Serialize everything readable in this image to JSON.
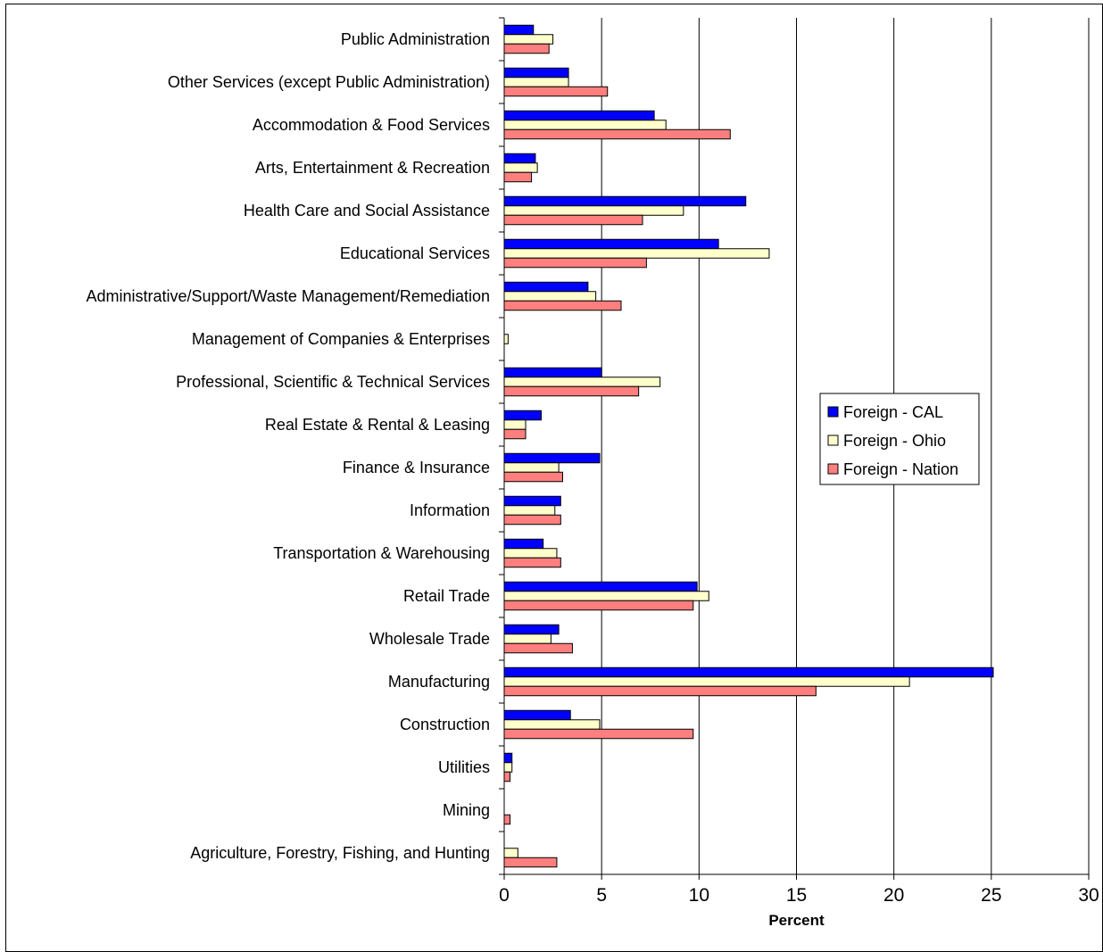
{
  "chart_data": {
    "type": "bar",
    "orientation": "horizontal",
    "title": "",
    "xlabel": "Percent",
    "ylabel": "",
    "xlim": [
      0,
      30
    ],
    "xticks": [
      "0",
      "5",
      "10",
      "15",
      "20",
      "25",
      "30"
    ],
    "grid": "vertical major gridlines",
    "legend_position": "right",
    "categories": [
      "Public Administration",
      "Other Services (except Public Administration)",
      "Accommodation & Food Services",
      "Arts, Entertainment & Recreation",
      "Health Care and Social Assistance",
      "Educational Services",
      "Administrative/Support/Waste Management/Remediation",
      "Management of Companies & Enterprises",
      "Professional, Scientific & Technical Services",
      "Real Estate & Rental & Leasing",
      "Finance & Insurance",
      "Information",
      "Transportation & Warehousing",
      "Retail Trade",
      "Wholesale Trade",
      "Manufacturing",
      "Construction",
      "Utilities",
      "Mining",
      "Agriculture, Forestry, Fishing, and Hunting"
    ],
    "series": [
      {
        "name": "Foreign - CAL",
        "color": "#0000ff",
        "values": [
          1.5,
          3.3,
          7.7,
          1.6,
          12.4,
          11.0,
          4.3,
          0.0,
          5.0,
          1.9,
          4.9,
          2.9,
          2.0,
          9.9,
          2.8,
          25.1,
          3.4,
          0.4,
          0.0,
          0.0
        ]
      },
      {
        "name": "Foreign - Ohio",
        "color": "#ffffcc",
        "values": [
          2.5,
          3.3,
          8.3,
          1.7,
          9.2,
          13.6,
          4.7,
          0.2,
          8.0,
          1.1,
          2.8,
          2.6,
          2.7,
          10.5,
          2.4,
          20.8,
          4.9,
          0.4,
          0.0,
          0.7
        ]
      },
      {
        "name": "Foreign - Nation",
        "color": "#ff7f7f",
        "values": [
          2.3,
          5.3,
          11.6,
          1.4,
          7.1,
          7.3,
          6.0,
          0.0,
          6.9,
          1.1,
          3.0,
          2.9,
          2.9,
          9.7,
          3.5,
          16.0,
          9.7,
          0.3,
          0.3,
          2.7
        ]
      }
    ]
  }
}
